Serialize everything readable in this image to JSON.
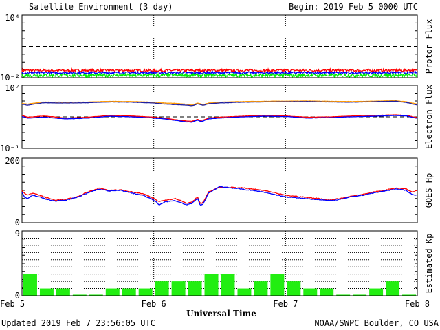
{
  "header": {
    "title": "Satellite Environment (3 day)",
    "begin": "Begin:  2019 Feb 5 0000 UTC"
  },
  "footer": {
    "updated": "Updated 2019 Feb  7 23:56:05 UTC",
    "credit": "NOAA/SWPC Boulder, CO USA",
    "xlabel": "Universal Time"
  },
  "colors": {
    "red": "#ff0000",
    "blue": "#0000ff",
    "green": "#00ee00",
    "orange": "#ff9900",
    "purple": "#2020a0",
    "bar": "#22ee11"
  },
  "chart_data": [
    {
      "type": "line",
      "ylabel": "Proton Flux",
      "scale": "log",
      "ylim": [
        0.01,
        10000
      ],
      "ytick_labels": [
        "10⁴",
        "10⁻²"
      ],
      "threshold": 10,
      "xlim": [
        0,
        72
      ],
      "x_tick_labels": [
        "Feb 5",
        "Feb 6",
        "Feb 7",
        "Feb 8"
      ],
      "series": [
        {
          "color": "red",
          "base": 0.05,
          "noise": 0.12
        },
        {
          "color": "blue",
          "base": 0.03,
          "noise": 0.1
        },
        {
          "color": "green",
          "base": 0.017,
          "noise": 0.16
        }
      ]
    },
    {
      "type": "line",
      "ylabel": "Electron Flux",
      "scale": "log",
      "ylim": [
        0.1,
        10000000
      ],
      "ytick_labels": [
        "10⁷",
        "10⁻¹"
      ],
      "threshold": 1000,
      "series": [
        {
          "color": "orange",
          "x": [
            0,
            1,
            4,
            8,
            12,
            16,
            20,
            24,
            26,
            28,
            30,
            31,
            32,
            32.5,
            33,
            34,
            36,
            40,
            44,
            48,
            52,
            56,
            60,
            64,
            68,
            70,
            72
          ],
          "values": [
            50000,
            40000,
            75000,
            70000,
            75000,
            90000,
            85000,
            70000,
            55000,
            50000,
            40000,
            30000,
            55000,
            45000,
            35000,
            55000,
            70000,
            85000,
            90000,
            95000,
            100000,
            90000,
            85000,
            95000,
            110000,
            80000,
            40000
          ]
        },
        {
          "color": "purple",
          "x": [
            0,
            1,
            4,
            8,
            12,
            16,
            20,
            24,
            26,
            28,
            30,
            31,
            32,
            32.5,
            33,
            34,
            36,
            40,
            44,
            48,
            52,
            56,
            60,
            64,
            68,
            70,
            72
          ],
          "values": [
            40000,
            30000,
            60000,
            55000,
            60000,
            75000,
            70000,
            55000,
            40000,
            35000,
            30000,
            25000,
            45000,
            35000,
            28000,
            45000,
            55000,
            70000,
            75000,
            80000,
            85000,
            75000,
            70000,
            80000,
            95000,
            65000,
            30000
          ]
        },
        {
          "color": "red",
          "x": [
            0,
            1,
            4,
            8,
            12,
            16,
            20,
            24,
            26,
            28,
            30,
            31,
            32,
            32.5,
            33,
            34,
            36,
            40,
            44,
            48,
            52,
            56,
            60,
            64,
            68,
            70,
            72
          ],
          "values": [
            1500,
            900,
            1300,
            700,
            900,
            1500,
            1300,
            900,
            700,
            450,
            300,
            280,
            500,
            330,
            400,
            700,
            900,
            1200,
            1500,
            1300,
            900,
            1000,
            1300,
            1500,
            1800,
            1500,
            800
          ]
        },
        {
          "color": "blue",
          "x": [
            0,
            1,
            4,
            8,
            12,
            16,
            20,
            24,
            26,
            28,
            30,
            31,
            32,
            32.5,
            33,
            34,
            36,
            40,
            44,
            48,
            52,
            56,
            60,
            64,
            68,
            70,
            72
          ],
          "values": [
            1100,
            700,
            900,
            550,
            700,
            1200,
            1000,
            700,
            550,
            350,
            230,
            220,
            400,
            260,
            300,
            550,
            700,
            1000,
            1200,
            1100,
            700,
            800,
            1000,
            1200,
            1500,
            1300,
            650
          ]
        }
      ]
    },
    {
      "type": "line",
      "ylabel": "GOES Hp",
      "scale": "linear",
      "ylim": [
        0,
        200
      ],
      "ytick_labels": [
        "200",
        "0"
      ],
      "series": [
        {
          "color": "red",
          "x": [
            0,
            0.5,
            1,
            2,
            4,
            6,
            8,
            10,
            12,
            14,
            16,
            18,
            20,
            22,
            24,
            25,
            26,
            28,
            30,
            31,
            32,
            32.5,
            33,
            34,
            36,
            40,
            44,
            48,
            52,
            54,
            56,
            58,
            60,
            62,
            64,
            66,
            68,
            70,
            71,
            72
          ],
          "values": [
            100,
            90,
            85,
            92,
            80,
            70,
            72,
            80,
            95,
            107,
            100,
            102,
            95,
            90,
            75,
            65,
            70,
            75,
            60,
            65,
            80,
            58,
            63,
            95,
            110,
            108,
            100,
            85,
            78,
            75,
            70,
            75,
            82,
            88,
            95,
            100,
            108,
            105,
            95,
            100
          ]
        },
        {
          "color": "blue",
          "x": [
            0,
            0.5,
            1,
            2,
            4,
            6,
            8,
            10,
            12,
            14,
            16,
            18,
            20,
            22,
            24,
            25,
            26,
            28,
            30,
            31,
            32,
            32.5,
            33,
            34,
            36,
            40,
            44,
            48,
            52,
            54,
            56,
            58,
            60,
            62,
            64,
            66,
            68,
            70,
            71,
            72
          ],
          "values": [
            95,
            78,
            75,
            85,
            75,
            67,
            70,
            78,
            92,
            104,
            98,
            100,
            92,
            85,
            70,
            55,
            65,
            68,
            55,
            60,
            75,
            52,
            58,
            92,
            112,
            104,
            95,
            80,
            74,
            72,
            68,
            72,
            80,
            85,
            92,
            98,
            104,
            100,
            88,
            85
          ]
        }
      ]
    },
    {
      "type": "bar",
      "ylabel": "Estimated Kp",
      "ylim": [
        0,
        9
      ],
      "ytick_labels": [
        "9",
        "0"
      ],
      "values": [
        3,
        1,
        1,
        0,
        0,
        1,
        1,
        1,
        2,
        2,
        2,
        3,
        3,
        1,
        2,
        3,
        2,
        1,
        1,
        0,
        0,
        1,
        2,
        0
      ]
    }
  ]
}
